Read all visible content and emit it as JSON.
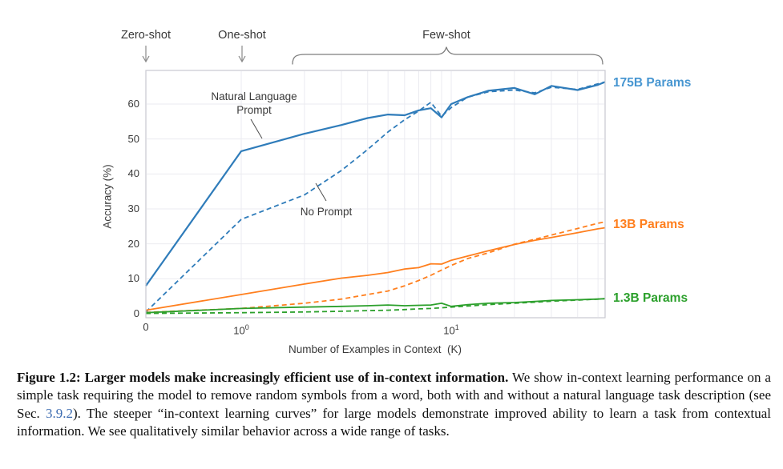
{
  "figure": {
    "method_labels": {
      "zero_shot": "Zero-shot",
      "one_shot": "One-shot",
      "few_shot": "Few-shot"
    },
    "annotations": {
      "nl_prompt_line1": "Natural Language",
      "nl_prompt_line2": "Prompt",
      "no_prompt": "No Prompt"
    },
    "legend": [
      {
        "label": "175B Params",
        "color": "#4796d1"
      },
      {
        "label": "13B Params",
        "color": "#ff7f1e"
      },
      {
        "label": "1.3B Params",
        "color": "#2ca02c"
      }
    ]
  },
  "chart_data": {
    "type": "line",
    "title": "",
    "xlabel": "Number of Examples in Context  (K)",
    "ylabel": "Accuracy (%)",
    "x_scale": "symlog",
    "xlim": [
      0,
      54
    ],
    "ylim": [
      0,
      70
    ],
    "yticks": [
      0,
      10,
      20,
      30,
      40,
      50,
      60
    ],
    "xticks": [
      {
        "pos": 0,
        "label": "0"
      },
      {
        "pos": 1,
        "label": "10^0"
      },
      {
        "pos": 10,
        "label": "10^1"
      }
    ],
    "x_gridlines": [
      1,
      2,
      3,
      4,
      5,
      6,
      7,
      8,
      9,
      10,
      20,
      30,
      40,
      50
    ],
    "grid": true,
    "legend_position": "right-outside",
    "x": [
      0,
      1,
      2,
      3,
      4,
      5,
      6,
      7,
      8,
      9,
      10,
      12,
      15,
      20,
      25,
      30,
      40,
      50,
      54
    ],
    "series": [
      {
        "id": "175b-nl",
        "name": "175B Params — Natural Language Prompt",
        "style": "solid",
        "color": "#2f7cba",
        "width": 2.2,
        "values": [
          8,
          46.5,
          51.5,
          54,
          56,
          57,
          56.8,
          58.2,
          58.8,
          56.2,
          60,
          62,
          63.8,
          64.6,
          62.8,
          65.2,
          64,
          65.5,
          66.3
        ]
      },
      {
        "id": "175b-np",
        "name": "175B Params — No Prompt",
        "style": "dashed",
        "color": "#2f7cba",
        "width": 1.8,
        "values": [
          0.5,
          27,
          34,
          41,
          47,
          52,
          55.5,
          58,
          60.5,
          56.5,
          59,
          62,
          63.5,
          64,
          63.2,
          64.8,
          64.2,
          65.8,
          66.3
        ]
      },
      {
        "id": "13b-nl",
        "name": "13B Params — Natural Language Prompt",
        "style": "solid",
        "color": "#ff7f1e",
        "width": 1.8,
        "values": [
          1,
          5.5,
          8.5,
          10.2,
          11,
          11.8,
          12.8,
          13.2,
          14.3,
          14.2,
          15.3,
          16.5,
          18,
          19.8,
          21,
          21.8,
          23.2,
          24.3,
          24.6
        ]
      },
      {
        "id": "13b-np",
        "name": "13B Params — No Prompt",
        "style": "dashed",
        "color": "#ff7f1e",
        "width": 1.8,
        "values": [
          0.4,
          1.5,
          3,
          4.2,
          5.5,
          6.5,
          8,
          9.5,
          11,
          12.5,
          13.8,
          15.8,
          17.4,
          19.9,
          21.3,
          22.5,
          24.4,
          25.9,
          26.3
        ]
      },
      {
        "id": "1.3b-nl",
        "name": "1.3B Params — Natural Language Prompt",
        "style": "solid",
        "color": "#2ca02c",
        "width": 1.8,
        "values": [
          0.3,
          1.5,
          1.9,
          2.1,
          2.3,
          2.5,
          2.3,
          2.4,
          2.5,
          3,
          2.1,
          2.6,
          3,
          3.2,
          3.5,
          3.8,
          4,
          4.2,
          4.3
        ]
      },
      {
        "id": "1.3b-np",
        "name": "1.3B Params — No Prompt",
        "style": "dashed",
        "color": "#2ca02c",
        "width": 1.8,
        "values": [
          0.1,
          0.3,
          0.5,
          0.7,
          0.9,
          1,
          1.2,
          1.4,
          1.5,
          1.7,
          1.9,
          2.2,
          2.6,
          3,
          3.3,
          3.6,
          3.9,
          4.2,
          4.3
        ]
      }
    ]
  },
  "caption": {
    "bold": "Figure 1.2: Larger models make increasingly efficient use of in-context information.",
    "text_before_link": "We show in-context learning performance on a simple task requiring the model to remove random symbols from a word, both with and without a natural language task description (see Sec. ",
    "link": "3.9.2",
    "text_after_link": "). The steeper “in-context learning curves” for large models demonstrate improved ability to learn a task from contextual information. We see qualitatively similar behavior across a wide range of tasks."
  }
}
